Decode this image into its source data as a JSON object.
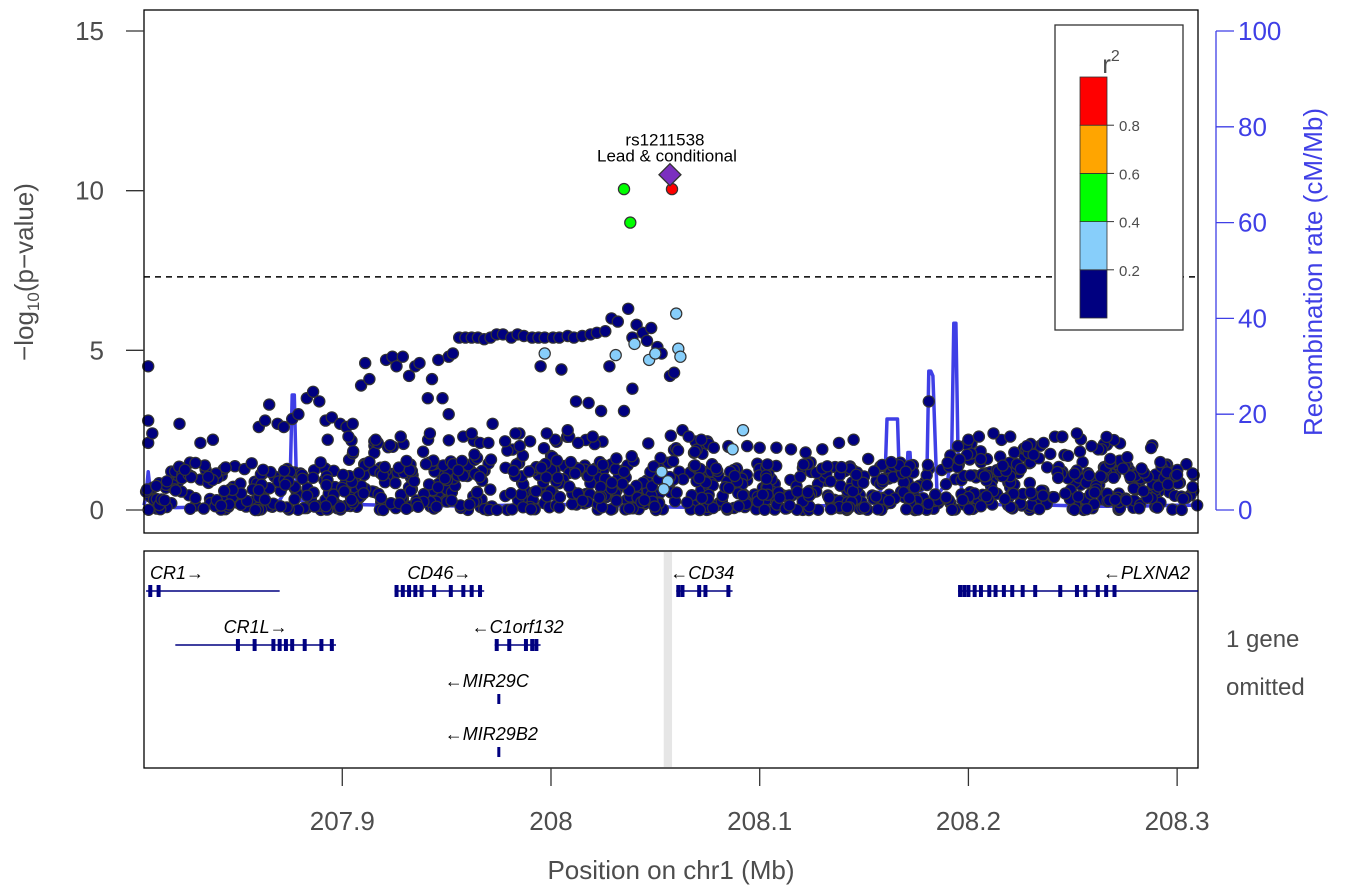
{
  "chart_data": {
    "type": "scatter",
    "xlabel": "Position on chr1 (Mb)",
    "x_ticks": [
      "207.9",
      "208",
      "208.1",
      "208.2",
      "208.3"
    ],
    "x_tick_values": [
      207.9,
      208.0,
      208.1,
      208.2,
      208.3
    ],
    "xlim": [
      207.805,
      208.31
    ],
    "ylabel_prefix": "−log",
    "ylabel_sub": "10",
    "ylabel_suffix": "(p−value)",
    "y_ticks": [
      "0",
      "5",
      "10",
      "15"
    ],
    "y_tick_values": [
      0,
      5,
      10,
      15
    ],
    "ylim": [
      -0.7,
      15.6
    ],
    "y2label": "Recombination rate (cM/Mb)",
    "y2_ticks": [
      "0",
      "20",
      "40",
      "60",
      "80",
      "100"
    ],
    "y2_tick_values": [
      0,
      20,
      40,
      60,
      80,
      100
    ],
    "significance_line": 7.3,
    "legend": {
      "title": "r",
      "title_sup": "2",
      "bins": [
        {
          "label": "0.2",
          "color": "#000080"
        },
        {
          "label": "0.4",
          "color": "#87CEFA"
        },
        {
          "label": "0.6",
          "color": "#00FF00"
        },
        {
          "label": "0.8",
          "color": "#FFA500"
        },
        {
          "label": "",
          "color": "#FF0000"
        }
      ],
      "placement": "top-right"
    },
    "lead_snp": {
      "name": "rs1211538",
      "note": "Lead & conditional",
      "x": 208.057,
      "y": 10.5,
      "color": "#7B2FBF"
    },
    "highlighted_points": [
      {
        "x": 208.035,
        "y": 10.05,
        "color": "#00FF00"
      },
      {
        "x": 208.038,
        "y": 9.0,
        "color": "#00FF00"
      },
      {
        "x": 208.058,
        "y": 10.05,
        "color": "#FF0000"
      },
      {
        "x": 208.06,
        "y": 6.15,
        "color": "#87CEFA"
      },
      {
        "x": 208.061,
        "y": 5.05,
        "color": "#87CEFA"
      },
      {
        "x": 208.062,
        "y": 4.8,
        "color": "#87CEFA"
      },
      {
        "x": 208.031,
        "y": 4.85,
        "color": "#87CEFA"
      },
      {
        "x": 208.04,
        "y": 5.2,
        "color": "#87CEFA"
      },
      {
        "x": 208.047,
        "y": 4.7,
        "color": "#87CEFA"
      },
      {
        "x": 208.05,
        "y": 4.9,
        "color": "#87CEFA"
      },
      {
        "x": 207.997,
        "y": 4.9,
        "color": "#87CEFA"
      },
      {
        "x": 208.092,
        "y": 2.5,
        "color": "#87CEFA"
      },
      {
        "x": 208.087,
        "y": 1.9,
        "color": "#87CEFA"
      },
      {
        "x": 208.053,
        "y": 1.2,
        "color": "#87CEFA"
      },
      {
        "x": 208.056,
        "y": 0.9,
        "color": "#87CEFA"
      },
      {
        "x": 208.054,
        "y": 0.65,
        "color": "#87CEFA"
      }
    ],
    "background_points": [
      [
        207.807,
        4.5
      ],
      [
        207.807,
        2.8
      ],
      [
        207.807,
        2.1
      ],
      [
        207.809,
        2.4
      ],
      [
        207.816,
        0.9
      ],
      [
        207.822,
        2.7
      ],
      [
        207.832,
        2.1
      ],
      [
        207.838,
        2.2
      ],
      [
        207.86,
        2.6
      ],
      [
        207.863,
        2.8
      ],
      [
        207.865,
        3.3
      ],
      [
        207.869,
        2.7
      ],
      [
        207.872,
        2.6
      ],
      [
        207.876,
        2.85
      ],
      [
        207.879,
        3.0
      ],
      [
        207.883,
        3.5
      ],
      [
        207.886,
        3.7
      ],
      [
        207.889,
        3.4
      ],
      [
        207.892,
        2.8
      ],
      [
        207.895,
        2.9
      ],
      [
        207.899,
        2.7
      ],
      [
        207.902,
        2.6
      ],
      [
        207.905,
        2.7
      ],
      [
        207.909,
        3.9
      ],
      [
        207.911,
        4.6
      ],
      [
        207.913,
        4.1
      ],
      [
        207.917,
        2.1
      ],
      [
        207.921,
        4.7
      ],
      [
        207.924,
        4.8
      ],
      [
        207.926,
        4.5
      ],
      [
        207.929,
        4.8
      ],
      [
        207.932,
        4.2
      ],
      [
        207.935,
        4.5
      ],
      [
        207.937,
        4.6
      ],
      [
        207.941,
        3.5
      ],
      [
        207.943,
        4.1
      ],
      [
        207.946,
        4.7
      ],
      [
        207.948,
        3.5
      ],
      [
        207.951,
        4.8
      ],
      [
        207.953,
        4.9
      ],
      [
        207.956,
        5.4
      ],
      [
        207.959,
        5.4
      ],
      [
        207.962,
        5.4
      ],
      [
        207.965,
        5.4
      ],
      [
        207.968,
        5.35
      ],
      [
        207.971,
        5.4
      ],
      [
        207.974,
        5.5
      ],
      [
        207.977,
        5.5
      ],
      [
        207.981,
        5.4
      ],
      [
        207.984,
        5.5
      ],
      [
        207.987,
        5.45
      ],
      [
        207.991,
        5.4
      ],
      [
        207.994,
        5.4
      ],
      [
        207.997,
        5.4
      ],
      [
        208.001,
        5.4
      ],
      [
        208.004,
        5.4
      ],
      [
        208.008,
        5.45
      ],
      [
        208.011,
        5.4
      ],
      [
        208.015,
        5.45
      ],
      [
        208.019,
        5.5
      ],
      [
        208.022,
        5.55
      ],
      [
        208.026,
        5.6
      ],
      [
        208.029,
        6.0
      ],
      [
        208.032,
        5.9
      ],
      [
        208.037,
        6.3
      ],
      [
        208.039,
        5.4
      ],
      [
        208.041,
        5.8
      ],
      [
        208.044,
        5.55
      ],
      [
        208.046,
        5.3
      ],
      [
        208.048,
        5.7
      ],
      [
        208.051,
        5.1
      ],
      [
        208.053,
        4.9
      ],
      [
        208.057,
        4.2
      ],
      [
        208.059,
        4.3
      ],
      [
        208.035,
        3.1
      ],
      [
        208.039,
        3.8
      ],
      [
        208.028,
        4.5
      ],
      [
        208.024,
        3.1
      ],
      [
        208.018,
        3.35
      ],
      [
        208.012,
        3.4
      ],
      [
        208.005,
        4.4
      ],
      [
        207.995,
        4.5
      ],
      [
        207.983,
        2.4
      ],
      [
        207.972,
        2.7
      ],
      [
        207.966,
        2.1
      ],
      [
        207.958,
        2.3
      ],
      [
        207.951,
        3.0
      ],
      [
        207.942,
        2.4
      ],
      [
        207.928,
        2.3
      ],
      [
        207.916,
        2.2
      ],
      [
        207.903,
        2.3
      ],
      [
        207.893,
        2.2
      ],
      [
        208.181,
        3.4
      ],
      [
        208.195,
        2.0
      ],
      [
        208.2,
        2.2
      ],
      [
        208.205,
        2.3
      ],
      [
        208.212,
        2.4
      ],
      [
        208.22,
        2.3
      ],
      [
        208.228,
        2.0
      ],
      [
        208.236,
        2.1
      ],
      [
        208.245,
        2.3
      ],
      [
        208.252,
        2.4
      ],
      [
        208.259,
        2.0
      ],
      [
        208.268,
        1.6
      ],
      [
        208.274,
        1.3
      ],
      [
        208.283,
        1.3
      ],
      [
        208.292,
        1.5
      ],
      [
        208.3,
        1.1
      ],
      [
        208.072,
        2.2
      ],
      [
        208.078,
        1.95
      ],
      [
        208.085,
        2.0
      ],
      [
        208.094,
        2.0
      ],
      [
        208.1,
        1.95
      ],
      [
        208.108,
        1.95
      ],
      [
        208.115,
        1.9
      ],
      [
        208.122,
        1.8
      ],
      [
        208.13,
        1.9
      ],
      [
        208.138,
        2.1
      ],
      [
        208.145,
        2.2
      ],
      [
        208.152,
        1.6
      ],
      [
        208.163,
        1.5
      ],
      [
        208.17,
        1.2
      ],
      [
        208.063,
        2.5
      ],
      [
        208.066,
        2.3
      ],
      [
        208.069,
        1.4
      ],
      [
        208.071,
        1.0
      ],
      [
        208.02,
        2.3
      ],
      [
        208.013,
        2.1
      ],
      [
        208.008,
        2.5
      ],
      [
        208.002,
        2.2
      ],
      [
        207.998,
        2.4
      ],
      [
        207.99,
        2.15
      ],
      [
        207.985,
        2.0
      ],
      [
        207.978,
        2.15
      ],
      [
        207.97,
        2.1
      ],
      [
        207.962,
        2.4
      ]
    ],
    "background_bands": [
      {
        "x_from": 207.805,
        "x_to": 208.31,
        "y_from": 0.0,
        "y_to": 1.5,
        "count": 900
      },
      {
        "x_from": 207.9,
        "x_to": 208.09,
        "y_from": 1.0,
        "y_to": 2.4,
        "count": 90
      },
      {
        "x_from": 208.19,
        "x_to": 208.29,
        "y_from": 1.0,
        "y_to": 2.3,
        "count": 70
      }
    ],
    "recombination_rate": {
      "color": "#3F3FE6",
      "x": [
        207.805,
        207.806,
        207.807,
        207.808,
        207.809,
        207.82,
        207.85,
        207.87,
        207.875,
        207.876,
        207.877,
        207.878,
        207.879,
        207.88,
        207.89,
        207.9,
        207.92,
        207.94,
        207.96,
        207.98,
        208.0,
        208.02,
        208.04,
        208.06,
        208.08,
        208.1,
        208.12,
        208.14,
        208.155,
        208.16,
        208.161,
        208.162,
        208.165,
        208.166,
        208.167,
        208.17,
        208.171,
        208.172,
        208.173,
        208.175,
        208.18,
        208.181,
        208.182,
        208.183,
        208.185,
        208.19,
        208.192,
        208.193,
        208.194,
        208.195,
        208.197,
        208.2,
        208.22,
        208.24,
        208.26,
        208.28,
        208.3,
        208.31
      ],
      "y": [
        1,
        3,
        8,
        4,
        1,
        0.5,
        0.8,
        2,
        6,
        24,
        24,
        6,
        3,
        2,
        1.5,
        1.2,
        1,
        1,
        0.8,
        1,
        1.2,
        1,
        0.8,
        0.6,
        0.5,
        0.6,
        0.8,
        1,
        1.5,
        6,
        19,
        19,
        19,
        19,
        6,
        3,
        12,
        12,
        4,
        3,
        5,
        29,
        29,
        28,
        3,
        6,
        12,
        39,
        39,
        12,
        3,
        1.5,
        1,
        1,
        0.8,
        0.8,
        1,
        1
      ]
    },
    "genes": [
      {
        "name": "CR1",
        "strand": "+",
        "start": 207.806,
        "end": 207.87,
        "row": 0,
        "exons": [
          207.808,
          207.812
        ]
      },
      {
        "name": "CR1L",
        "strand": "+",
        "start": 207.82,
        "end": 207.897,
        "row": 1,
        "exons": [
          207.85,
          207.858,
          207.867,
          207.87,
          207.873,
          207.876,
          207.882,
          207.89,
          207.895
        ]
      },
      {
        "name": "CD46",
        "strand": "+",
        "start": 207.925,
        "end": 207.968,
        "row": 0,
        "exons": [
          207.926,
          207.929,
          207.932,
          207.935,
          207.938,
          207.944,
          207.952,
          207.958,
          207.962,
          207.966
        ]
      },
      {
        "name": "C1orf132",
        "strand": "-",
        "start": 207.973,
        "end": 207.995,
        "row": 1,
        "exons": [
          207.974,
          207.98,
          207.988,
          207.991,
          207.993
        ]
      },
      {
        "name": "MIR29C",
        "strand": "-",
        "start": 207.975,
        "end": 207.976,
        "row": 2,
        "exons": []
      },
      {
        "name": "MIR29B2",
        "strand": "-",
        "start": 207.975,
        "end": 207.976,
        "row": 3,
        "exons": []
      },
      {
        "name": "CD34",
        "strand": "-",
        "start": 208.06,
        "end": 208.087,
        "row": 0,
        "exons": [
          208.061,
          208.063,
          208.071,
          208.074,
          208.085
        ]
      },
      {
        "name": "PLXNA2",
        "strand": "-",
        "start": 208.195,
        "end": 208.31,
        "row": 0,
        "exons": [
          208.196,
          208.198,
          208.2,
          208.203,
          208.206,
          208.21,
          208.213,
          208.217,
          208.221,
          208.226,
          208.232,
          208.244,
          208.252,
          208.256,
          208.262,
          208.266,
          208.27
        ]
      }
    ],
    "highlight_band": {
      "x_from": 208.054,
      "x_to": 208.058,
      "color": "#E6E6E6"
    },
    "omitted_note_line1": "1 gene",
    "omitted_note_line2": "omitted"
  }
}
